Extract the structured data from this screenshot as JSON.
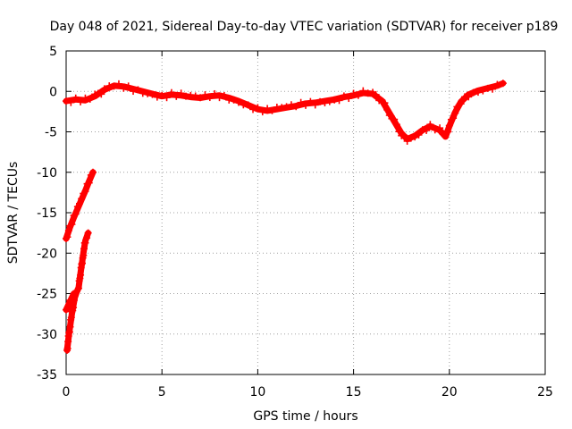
{
  "chart_data": {
    "type": "scatter",
    "title": "Day 048 of 2021, Sidereal Day-to-day VTEC variation (SDTVAR) for receiver p189",
    "xlabel": "GPS time / hours",
    "ylabel": "SDTVAR / TECUs",
    "xlim": [
      0,
      25
    ],
    "ylim": [
      -35,
      5
    ],
    "xticks": [
      0,
      5,
      10,
      15,
      20,
      25
    ],
    "yticks": [
      -35,
      -30,
      -25,
      -20,
      -15,
      -10,
      -5,
      0,
      5
    ],
    "grid": true,
    "marker": "+",
    "color": "#ff0000",
    "series": [
      {
        "name": "SDTVAR",
        "segments": [
          [
            [
              0.0,
              -18.2
            ],
            [
              0.2,
              -16.8
            ],
            [
              0.4,
              -15.6
            ],
            [
              0.6,
              -14.5
            ],
            [
              0.8,
              -13.4
            ],
            [
              1.0,
              -12.3
            ],
            [
              1.2,
              -11.1
            ],
            [
              1.4,
              -10.0
            ]
          ],
          [
            [
              0.05,
              -32.0
            ],
            [
              0.15,
              -30.0
            ],
            [
              0.3,
              -27.5
            ],
            [
              0.45,
              -25.5
            ],
            [
              0.55,
              -24.8
            ],
            [
              0.65,
              -24.3
            ],
            [
              0.75,
              -22.5
            ],
            [
              0.9,
              -20.0
            ],
            [
              1.0,
              -18.5
            ],
            [
              1.15,
              -17.5
            ]
          ],
          [
            [
              0.0,
              -27.0
            ],
            [
              0.2,
              -26.0
            ],
            [
              0.4,
              -25.0
            ]
          ],
          [
            [
              0.0,
              -1.2
            ],
            [
              0.5,
              -1.0
            ],
            [
              1.0,
              -1.1
            ],
            [
              1.5,
              -0.6
            ],
            [
              2.0,
              0.2
            ],
            [
              2.5,
              0.7
            ],
            [
              3.0,
              0.6
            ],
            [
              3.5,
              0.3
            ],
            [
              4.0,
              0.0
            ],
            [
              4.5,
              -0.3
            ],
            [
              5.0,
              -0.6
            ],
            [
              5.5,
              -0.4
            ],
            [
              6.0,
              -0.5
            ],
            [
              6.5,
              -0.7
            ],
            [
              7.0,
              -0.8
            ],
            [
              7.5,
              -0.6
            ],
            [
              8.0,
              -0.5
            ],
            [
              8.5,
              -0.8
            ],
            [
              9.0,
              -1.2
            ],
            [
              9.5,
              -1.7
            ],
            [
              10.0,
              -2.2
            ],
            [
              10.5,
              -2.4
            ],
            [
              11.0,
              -2.2
            ],
            [
              11.5,
              -2.0
            ],
            [
              12.0,
              -1.8
            ],
            [
              12.5,
              -1.5
            ],
            [
              13.0,
              -1.4
            ],
            [
              13.5,
              -1.2
            ],
            [
              14.0,
              -1.0
            ],
            [
              14.5,
              -0.7
            ],
            [
              15.0,
              -0.5
            ],
            [
              15.5,
              -0.2
            ],
            [
              16.0,
              -0.3
            ],
            [
              16.5,
              -1.2
            ],
            [
              17.0,
              -3.2
            ],
            [
              17.5,
              -5.2
            ],
            [
              17.8,
              -5.9
            ],
            [
              18.2,
              -5.5
            ],
            [
              18.6,
              -4.8
            ],
            [
              19.0,
              -4.3
            ],
            [
              19.5,
              -4.8
            ],
            [
              19.8,
              -5.6
            ],
            [
              20.0,
              -4.3
            ],
            [
              20.3,
              -2.6
            ],
            [
              20.6,
              -1.3
            ],
            [
              21.0,
              -0.4
            ],
            [
              21.5,
              0.1
            ],
            [
              22.0,
              0.4
            ],
            [
              22.5,
              0.7
            ],
            [
              22.8,
              1.0
            ]
          ]
        ]
      }
    ]
  }
}
